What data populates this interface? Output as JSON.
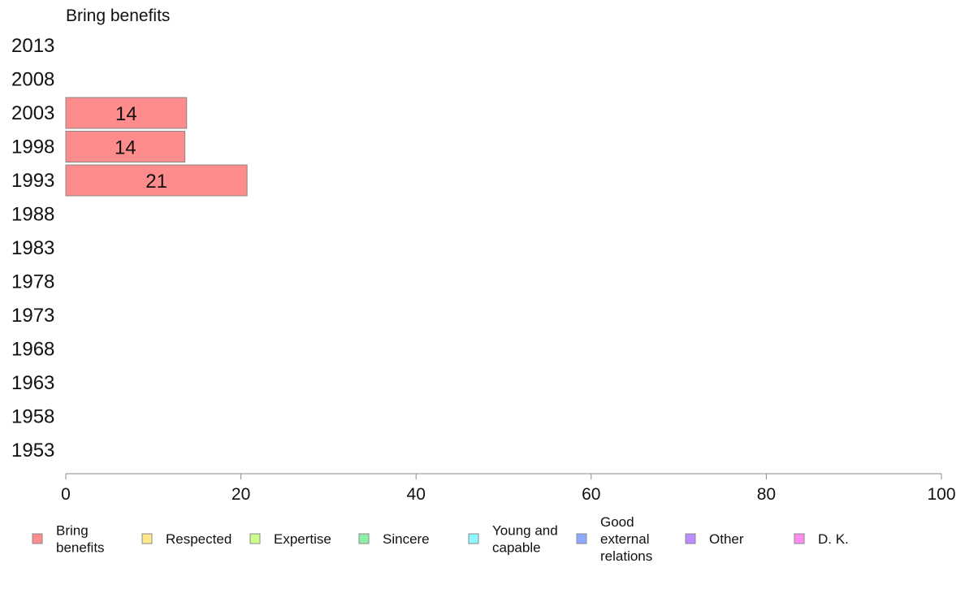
{
  "chart_data": {
    "type": "bar",
    "orientation": "horizontal",
    "title": "Bring benefits",
    "xlabel": "",
    "ylabel": "",
    "xlim": [
      0,
      100
    ],
    "xticks": [
      "0",
      "20",
      "40",
      "60",
      "80",
      "100"
    ],
    "categories": [
      "2013",
      "2008",
      "2003",
      "1998",
      "1993",
      "1988",
      "1983",
      "1978",
      "1973",
      "1968",
      "1963",
      "1958",
      "1953"
    ],
    "series": [
      {
        "name": "Bring benefits",
        "color": "#ff8c8c",
        "values": [
          null,
          null,
          13.8,
          13.6,
          20.7,
          null,
          null,
          null,
          null,
          null,
          null,
          null,
          null
        ],
        "labels": [
          "",
          "",
          "14",
          "14",
          "21",
          "",
          "",
          "",
          "",
          "",
          "",
          "",
          ""
        ]
      }
    ],
    "legend": {
      "placement": "bottom",
      "entries": [
        {
          "lines": [
            "Bring",
            "benefits"
          ],
          "color": "#ff8c8c"
        },
        {
          "lines": [
            "Respected"
          ],
          "color": "#ffe88c"
        },
        {
          "lines": [
            "Expertise"
          ],
          "color": "#ccff8c"
        },
        {
          "lines": [
            "Sincere"
          ],
          "color": "#8cf0a8"
        },
        {
          "lines": [
            "Young and",
            "capable"
          ],
          "color": "#8cf8ff"
        },
        {
          "lines": [
            "Good",
            "external",
            "relations"
          ],
          "color": "#8caaff"
        },
        {
          "lines": [
            "Other"
          ],
          "color": "#bb8cff"
        },
        {
          "lines": [
            "D. K."
          ],
          "color": "#ff8cf0"
        }
      ]
    },
    "grid": false
  }
}
